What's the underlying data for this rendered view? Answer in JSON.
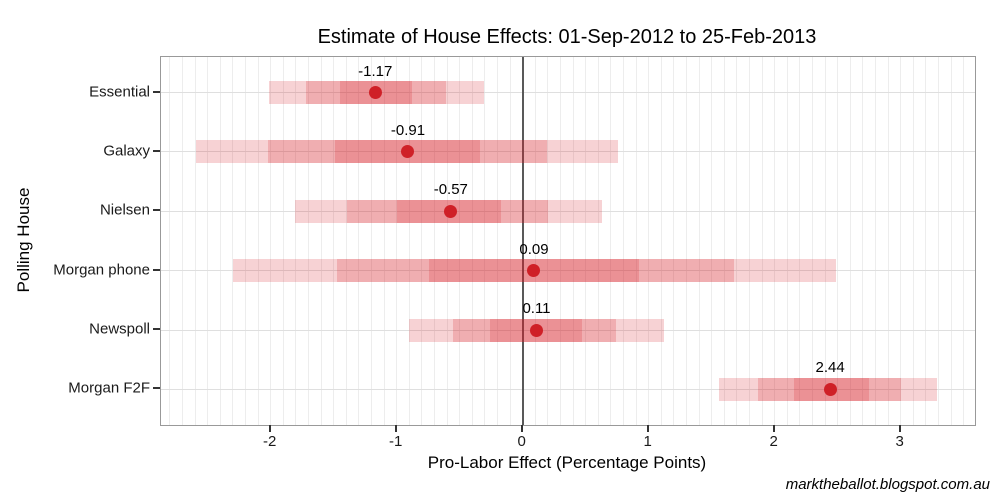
{
  "chart_data": {
    "type": "scatter",
    "subtype": "nested-credible-interval-dot-plot",
    "title": "Estimate of House Effects: 01-Sep-2012 to 25-Feb-2013",
    "xlabel": "Pro-Labor Effect (Percentage Points)",
    "ylabel": "Polling House",
    "watermark": "marktheballot.blogspot.com.au",
    "categories": [
      "Essential",
      "Galaxy",
      "Nielsen",
      "Morgan phone",
      "Newspoll",
      "Morgan F2F"
    ],
    "estimates": [
      -1.17,
      -0.91,
      -0.57,
      0.09,
      0.11,
      2.44
    ],
    "estimate_labels": [
      "-1.17",
      "-0.91",
      "-0.57",
      "0.09",
      "0.11",
      "2.44"
    ],
    "intervals": [
      {
        "house": "Essential",
        "inner": [
          -1.45,
          -0.88
        ],
        "middle": [
          -1.72,
          -0.61
        ],
        "outer": [
          -2.01,
          -0.31
        ]
      },
      {
        "house": "Galaxy",
        "inner": [
          -1.49,
          -0.34
        ],
        "middle": [
          -2.02,
          0.19
        ],
        "outer": [
          -2.59,
          0.76
        ]
      },
      {
        "house": "Nielsen",
        "inner": [
          -1.0,
          -0.17
        ],
        "middle": [
          -1.39,
          0.2
        ],
        "outer": [
          -1.81,
          0.63
        ]
      },
      {
        "house": "Morgan phone",
        "inner": [
          -0.74,
          0.92
        ],
        "middle": [
          -1.47,
          1.68
        ],
        "outer": [
          -2.3,
          2.49
        ]
      },
      {
        "house": "Newspoll",
        "inner": [
          -0.26,
          0.47
        ],
        "middle": [
          -0.55,
          0.74
        ],
        "outer": [
          -0.9,
          1.12
        ]
      },
      {
        "house": "Morgan F2F",
        "inner": [
          2.15,
          2.75
        ],
        "middle": [
          1.87,
          3.0
        ],
        "outer": [
          1.56,
          3.29
        ]
      }
    ],
    "xticks": [
      -2,
      -1,
      0,
      1,
      2,
      3
    ],
    "xtick_labels": [
      "-2",
      "-1",
      "0",
      "1",
      "2",
      "3"
    ],
    "xlim": [
      -2.87,
      3.59
    ],
    "minor_grid_step": 0.1,
    "zero_reference_line": 0,
    "grid": "minor-vertical-and-category-horizontal",
    "legend_position": "none",
    "colors": {
      "band_rgba": "rgba(216,32,40,0.2)",
      "dot": "#cf2027",
      "zero_line": "#595959",
      "grid_vertical": "#ededed",
      "grid_horizontal": "#dfdfdf",
      "panel_border": "#999999",
      "tick": "#333333",
      "text": "#000000"
    }
  }
}
